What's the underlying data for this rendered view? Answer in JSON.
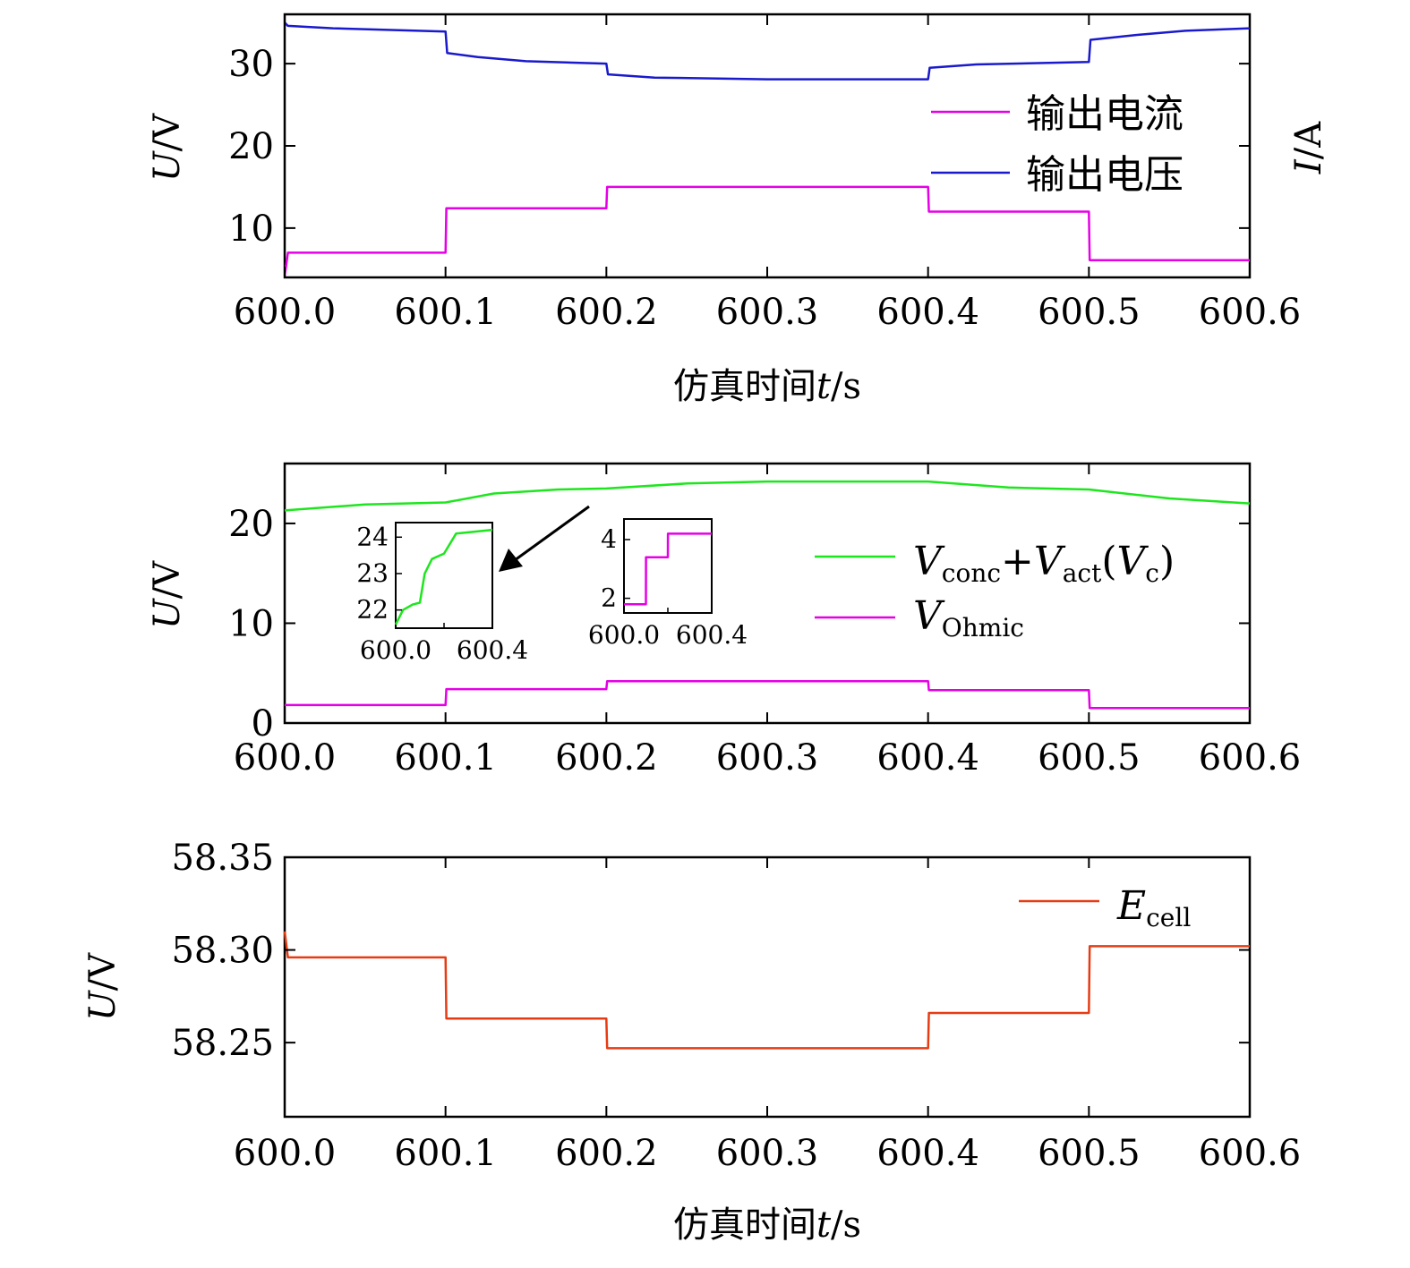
{
  "chart_data": [
    {
      "type": "line",
      "xlabel_cn": "仿真时间",
      "xlabel_var": "t",
      "xlabel_unit": "/s",
      "ylabel_var": "U",
      "ylabel_unit": "/V",
      "ylabel_right_var": "I",
      "ylabel_right_unit": "/A",
      "xlim": [
        600.0,
        600.6
      ],
      "ylim": [
        4,
        36
      ],
      "xticks": [
        600.0,
        600.1,
        600.2,
        600.3,
        600.4,
        600.5,
        600.6
      ],
      "xtick_labels": [
        "600.0",
        "600.1",
        "600.2",
        "600.3",
        "600.4",
        "600.5",
        "600.6"
      ],
      "yticks": [
        10,
        20,
        30
      ],
      "ytick_labels": [
        "10",
        "20",
        "30"
      ],
      "legend_position": "right",
      "series": [
        {
          "name": "输出电流",
          "color": "#e600e6",
          "x": [
            600.0,
            600.002,
            600.1,
            600.1005,
            600.2,
            600.2005,
            600.4,
            600.4005,
            600.5,
            600.5005,
            600.6
          ],
          "y": [
            4.2,
            7.0,
            7.0,
            12.4,
            12.4,
            15.0,
            15.0,
            12.0,
            12.0,
            6.1,
            6.1
          ]
        },
        {
          "name": "输出电压",
          "color": "#1a1acc",
          "x": [
            600.0,
            600.002,
            600.03,
            600.1,
            600.101,
            600.12,
            600.15,
            600.2,
            600.201,
            600.23,
            600.3,
            600.4,
            600.401,
            600.43,
            600.5,
            600.501,
            600.53,
            600.56,
            600.6
          ],
          "y": [
            35.0,
            34.6,
            34.3,
            33.9,
            31.3,
            30.8,
            30.3,
            30.0,
            28.7,
            28.3,
            28.1,
            28.1,
            29.5,
            29.9,
            30.2,
            32.9,
            33.5,
            34.0,
            34.3
          ]
        }
      ]
    },
    {
      "type": "line",
      "ylabel_var": "U",
      "ylabel_unit": "/V",
      "xlim": [
        600.0,
        600.6
      ],
      "ylim": [
        0,
        26
      ],
      "xticks": [
        600.0,
        600.1,
        600.2,
        600.3,
        600.4,
        600.5,
        600.6
      ],
      "xtick_labels": [
        "600.0",
        "600.1",
        "600.2",
        "600.3",
        "600.4",
        "600.5",
        "600.6"
      ],
      "yticks": [
        0,
        10,
        20
      ],
      "ytick_labels": [
        "0",
        "10",
        "20"
      ],
      "legend_position": "right",
      "series": [
        {
          "name": "Vconc+Vact(Vc)",
          "name_parts": {
            "v": "V",
            "sub1": "conc",
            "plus": "+",
            "sub2": "act",
            "paren_open": "(",
            "sub3": "c",
            "paren_close": ")"
          },
          "color": "#1ee61e",
          "x": [
            600.0,
            600.05,
            600.1,
            600.13,
            600.17,
            600.2,
            600.25,
            600.3,
            600.4,
            600.45,
            600.5,
            600.55,
            600.6
          ],
          "y": [
            21.3,
            21.9,
            22.1,
            23.0,
            23.4,
            23.5,
            24.0,
            24.2,
            24.2,
            23.6,
            23.4,
            22.5,
            22.0
          ]
        },
        {
          "name": "VOhmic",
          "name_parts": {
            "v": "V",
            "sub": "Ohmic"
          },
          "color": "#e600e6",
          "x": [
            600.0,
            600.1,
            600.1005,
            600.2,
            600.2005,
            600.4,
            600.4005,
            600.5,
            600.5005,
            600.6
          ],
          "y": [
            1.8,
            1.8,
            3.4,
            3.4,
            4.2,
            4.2,
            3.3,
            3.3,
            1.5,
            1.5
          ]
        }
      ],
      "insets": [
        {
          "type": "line",
          "color": "#1ee61e",
          "xlim": [
            600.0,
            600.4
          ],
          "ylim": [
            21.5,
            24.4
          ],
          "xtick_labels": [
            "600.0",
            "600.4"
          ],
          "yticks": [
            22,
            23,
            24
          ],
          "ytick_labels": [
            "22",
            "23",
            "24"
          ],
          "x": [
            600.0,
            600.03,
            600.07,
            600.1,
            600.12,
            600.15,
            600.2,
            600.25,
            600.4
          ],
          "y": [
            21.6,
            22.0,
            22.15,
            22.2,
            23.0,
            23.4,
            23.55,
            24.1,
            24.2
          ]
        },
        {
          "type": "line",
          "color": "#e600e6",
          "xlim": [
            600.0,
            600.4
          ],
          "ylim": [
            1.5,
            4.7
          ],
          "xtick_labels": [
            "600.0",
            "600.4"
          ],
          "yticks": [
            2,
            4
          ],
          "ytick_labels": [
            "2",
            "4"
          ],
          "x": [
            600.0,
            600.1,
            600.1005,
            600.2,
            600.2005,
            600.4
          ],
          "y": [
            1.8,
            1.8,
            3.4,
            3.4,
            4.2,
            4.2
          ]
        }
      ]
    },
    {
      "type": "line",
      "xlabel_cn": "仿真时间",
      "xlabel_var": "t",
      "xlabel_unit": "/s",
      "ylabel_var": "U",
      "ylabel_unit": "/V",
      "xlim": [
        600.0,
        600.6
      ],
      "ylim": [
        58.21,
        58.35
      ],
      "xticks": [
        600.0,
        600.1,
        600.2,
        600.3,
        600.4,
        600.5,
        600.6
      ],
      "xtick_labels": [
        "600.0",
        "600.1",
        "600.2",
        "600.3",
        "600.4",
        "600.5",
        "600.6"
      ],
      "yticks": [
        58.25,
        58.3,
        58.35
      ],
      "ytick_labels": [
        "58.25",
        "58.30",
        "58.35"
      ],
      "legend_position": "top-right",
      "series": [
        {
          "name": "Ecell",
          "name_parts": {
            "v": "E",
            "sub": "cell"
          },
          "color": "#e63c14",
          "x": [
            600.0,
            600.002,
            600.1,
            600.1005,
            600.2,
            600.2005,
            600.4,
            600.4005,
            600.5,
            600.5005,
            600.6
          ],
          "y": [
            58.31,
            58.296,
            58.296,
            58.263,
            58.263,
            58.247,
            58.247,
            58.266,
            58.266,
            58.302,
            58.302
          ]
        }
      ]
    }
  ]
}
